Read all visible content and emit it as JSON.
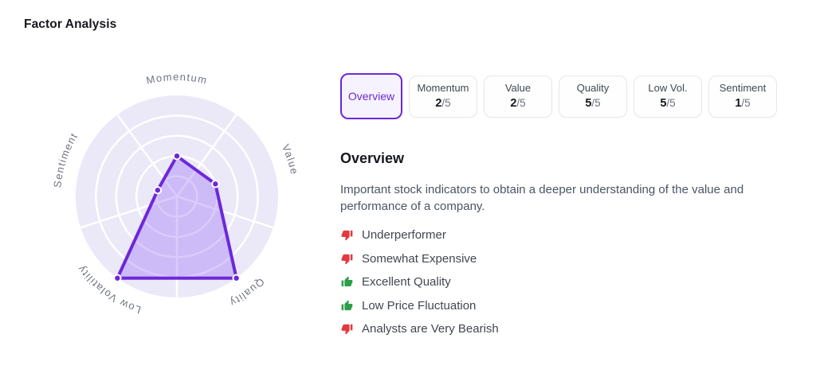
{
  "page": {
    "title": "Factor Analysis"
  },
  "tabs": [
    {
      "id": "overview",
      "label": "Overview",
      "selected": true
    },
    {
      "id": "momentum",
      "label": "Momentum",
      "score": "2",
      "denominator": "/5"
    },
    {
      "id": "value",
      "label": "Value",
      "score": "2",
      "denominator": "/5"
    },
    {
      "id": "quality",
      "label": "Quality",
      "score": "5",
      "denominator": "/5"
    },
    {
      "id": "low-vol",
      "label": "Low Vol.",
      "score": "5",
      "denominator": "/5"
    },
    {
      "id": "sentiment",
      "label": "Sentiment",
      "score": "1",
      "denominator": "/5"
    }
  ],
  "overview": {
    "heading": "Overview",
    "description": "Important stock indicators to obtain a deeper understanding of the value and performance of a company.",
    "items": [
      {
        "icon": "thumbs-down-icon",
        "sentiment": "negative",
        "label": "Underperformer"
      },
      {
        "icon": "thumbs-down-icon",
        "sentiment": "negative",
        "label": "Somewhat Expensive"
      },
      {
        "icon": "thumbs-up-icon",
        "sentiment": "positive",
        "label": "Excellent Quality"
      },
      {
        "icon": "thumbs-up-icon",
        "sentiment": "positive",
        "label": "Low Price Fluctuation"
      },
      {
        "icon": "thumbs-down-icon",
        "sentiment": "negative",
        "label": "Analysts are Very Bearish"
      }
    ]
  },
  "chart_data": {
    "type": "radar",
    "title": "Factor Analysis radar",
    "categories": [
      "Momentum",
      "Value",
      "Quality",
      "Low Volatility",
      "Sentiment"
    ],
    "values": [
      2,
      2,
      5,
      5,
      1
    ],
    "scale_max": 5,
    "rings": 5,
    "grid": "concentric-circles-with-sector-dividers",
    "legend": "none"
  },
  "colors": {
    "accent_purple": "#6d28d9",
    "selected_tab_bg": "#f6f3ff",
    "chart_disc": "#ebe8f8",
    "chart_fill": "#8b5cf6",
    "grid_line": "#ffffff",
    "axis_label": "#70757f",
    "negative_red": "#e5393f",
    "positive_green": "#2b9e4a"
  }
}
